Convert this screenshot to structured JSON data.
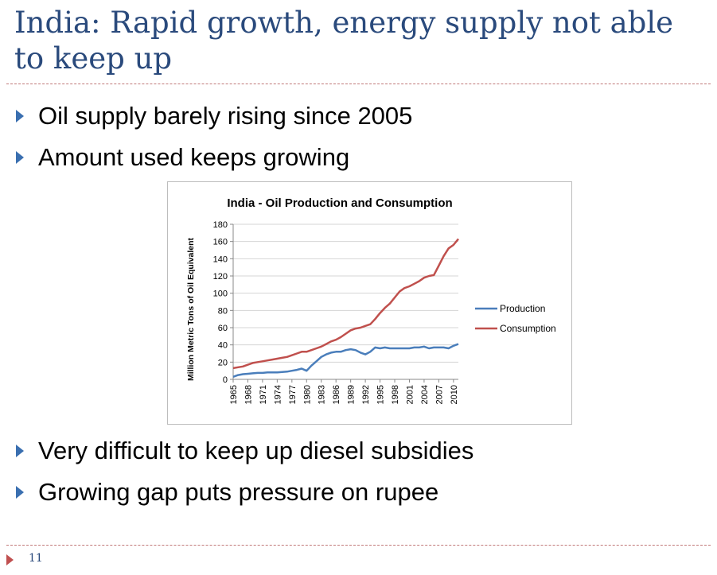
{
  "slide": {
    "title": "India: Rapid growth, energy supply not able to keep up",
    "bullets_top": [
      "Oil supply barely rising since 2005",
      "Amount used keeps growing"
    ],
    "bullets_bottom": [
      "Very difficult to keep up diesel subsidies",
      "Growing gap puts pressure on rupee"
    ],
    "page_number": "11",
    "colors": {
      "title": "#2a4a7c",
      "bullet": "#3a6fb0",
      "divider": "#c07878",
      "footer_marker": "#c05050"
    }
  },
  "chart_data": {
    "type": "line",
    "title": "India - Oil Production and Consumption",
    "xlabel": "",
    "ylabel": "Million Metric Tons of Oil Equivalent",
    "ylim": [
      0,
      180
    ],
    "yticks": [
      0,
      20,
      40,
      60,
      80,
      100,
      120,
      140,
      160,
      180
    ],
    "xticks": [
      1965,
      1968,
      1971,
      1974,
      1977,
      1980,
      1983,
      1986,
      1989,
      1992,
      1995,
      1998,
      2001,
      2004,
      2007,
      2010
    ],
    "legend_position": "right",
    "grid": true,
    "x": [
      1965,
      1966,
      1967,
      1968,
      1969,
      1970,
      1971,
      1972,
      1973,
      1974,
      1975,
      1976,
      1977,
      1978,
      1979,
      1980,
      1981,
      1982,
      1983,
      1984,
      1985,
      1986,
      1987,
      1988,
      1989,
      1990,
      1991,
      1992,
      1993,
      1994,
      1995,
      1996,
      1997,
      1998,
      1999,
      2000,
      2001,
      2002,
      2003,
      2004,
      2005,
      2006,
      2007,
      2008,
      2009,
      2010,
      2011
    ],
    "series": [
      {
        "name": "Production",
        "color": "#4a7ebb",
        "values": [
          3,
          5,
          6,
          6.5,
          7,
          7.5,
          7.5,
          8,
          8,
          8,
          8.5,
          9,
          10,
          11,
          12.5,
          10,
          16,
          21,
          26,
          29,
          31,
          32,
          32,
          34,
          35,
          34,
          31,
          29,
          32,
          37,
          36,
          37,
          36,
          36,
          36,
          36,
          36,
          37,
          37,
          38,
          36,
          37,
          37,
          37,
          36,
          39,
          41
        ]
      },
      {
        "name": "Consumption",
        "color": "#c0504d",
        "values": [
          13,
          14,
          15,
          17,
          19,
          20,
          21,
          22,
          23,
          24,
          25,
          26,
          28,
          30,
          32,
          32,
          34,
          36,
          38,
          41,
          44,
          46,
          49,
          53,
          57,
          59,
          60,
          62,
          64,
          70,
          77,
          83,
          88,
          95,
          102,
          106,
          108,
          111,
          114,
          118,
          120,
          121,
          132,
          143,
          152,
          156,
          163
        ]
      }
    ]
  }
}
